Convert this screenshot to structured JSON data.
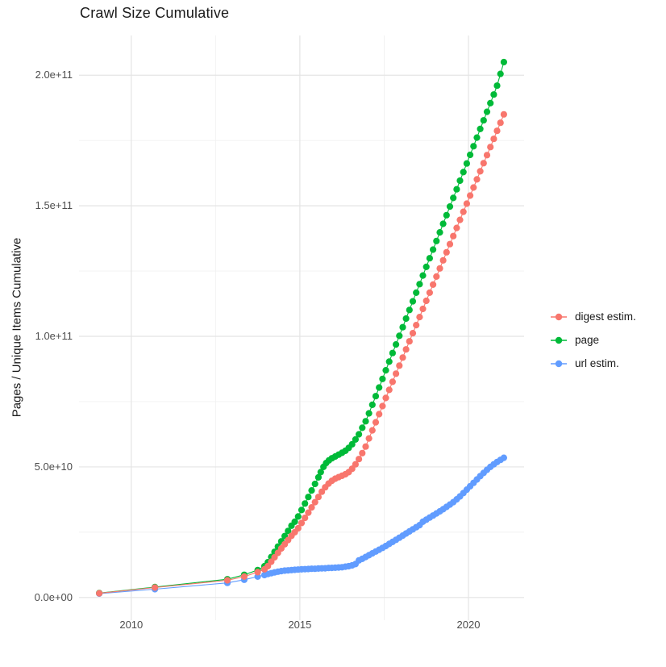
{
  "title": "Crawl Size Cumulative",
  "y_axis_title": "Pages / Unique Items Cumulative",
  "legend": {
    "items": [
      {
        "label": "digest estim.",
        "series": "digest"
      },
      {
        "label": "page",
        "series": "page"
      },
      {
        "label": "url estim.",
        "series": "url"
      }
    ]
  },
  "chart_data": {
    "type": "scatter",
    "title": "Crawl Size Cumulative",
    "xlabel": "",
    "ylabel": "Pages / Unique Items Cumulative",
    "value_unit": "1e9 (billions)",
    "xlim": [
      2008.45,
      2021.65
    ],
    "ylim": [
      -8.7,
      215.2
    ],
    "grid": true,
    "legend_position": "right",
    "x_axis": {
      "ticks": [
        {
          "value": 2010,
          "label": "2010"
        },
        {
          "value": 2015,
          "label": "2015"
        },
        {
          "value": 2020,
          "label": "2020"
        }
      ],
      "minor": [
        2012.5,
        2017.5
      ]
    },
    "y_axis": {
      "ticks": [
        {
          "value": 0,
          "label": "0.0e+00"
        },
        {
          "value": 50,
          "label": "5.0e+10"
        },
        {
          "value": 100,
          "label": "1.0e+11"
        },
        {
          "value": 150,
          "label": "1.5e+11"
        },
        {
          "value": 200,
          "label": "2.0e+11"
        }
      ],
      "minor": [
        25,
        75,
        125,
        175
      ]
    },
    "colors": {
      "digest": "#F8766D",
      "page": "#00BA38",
      "url": "#619CFF"
    },
    "grid_major_color": "#e4e4e4",
    "grid_minor_color": "#f1f1f1",
    "series": [
      {
        "name": "digest estim.",
        "id": "digest",
        "color": "#F8766D",
        "points": [
          [
            2009.05,
            1.6
          ],
          [
            2010.7,
            3.8
          ],
          [
            2012.85,
            6.6
          ],
          [
            2013.35,
            8.0
          ],
          [
            2013.75,
            9.7
          ],
          [
            2013.95,
            10.8
          ],
          [
            2014.05,
            12
          ],
          [
            2014.15,
            13.7
          ],
          [
            2014.25,
            15.4
          ],
          [
            2014.35,
            17.1
          ],
          [
            2014.45,
            18.8
          ],
          [
            2014.55,
            20.4
          ],
          [
            2014.65,
            22
          ],
          [
            2014.75,
            23.6
          ],
          [
            2014.85,
            25
          ],
          [
            2014.95,
            26.5
          ],
          [
            2015.05,
            28.5
          ],
          [
            2015.15,
            30.5
          ],
          [
            2015.25,
            32.5
          ],
          [
            2015.35,
            34.5
          ],
          [
            2015.45,
            36.5
          ],
          [
            2015.55,
            38.5
          ],
          [
            2015.65,
            40.5
          ],
          [
            2015.75,
            42.2
          ],
          [
            2015.85,
            43.6
          ],
          [
            2015.95,
            44.7
          ],
          [
            2016.05,
            45.5
          ],
          [
            2016.15,
            46.1
          ],
          [
            2016.25,
            46.6
          ],
          [
            2016.35,
            47.2
          ],
          [
            2016.45,
            48
          ],
          [
            2016.55,
            49.3
          ],
          [
            2016.65,
            51
          ],
          [
            2016.75,
            53
          ],
          [
            2016.85,
            55.3
          ],
          [
            2016.95,
            57.8
          ],
          [
            2017.05,
            60.9
          ],
          [
            2017.15,
            64
          ],
          [
            2017.25,
            67.1
          ],
          [
            2017.35,
            70.2
          ],
          [
            2017.45,
            73.3
          ],
          [
            2017.55,
            76.4
          ],
          [
            2017.65,
            79.5
          ],
          [
            2017.75,
            82.6
          ],
          [
            2017.85,
            85.7
          ],
          [
            2017.95,
            88.8
          ],
          [
            2018.05,
            91.9
          ],
          [
            2018.15,
            95
          ],
          [
            2018.25,
            98.1
          ],
          [
            2018.35,
            101.2
          ],
          [
            2018.45,
            104.3
          ],
          [
            2018.55,
            107.4
          ],
          [
            2018.65,
            110.5
          ],
          [
            2018.75,
            113.6
          ],
          [
            2018.85,
            116.7
          ],
          [
            2018.95,
            119.8
          ],
          [
            2019.05,
            122.9
          ],
          [
            2019.15,
            126
          ],
          [
            2019.25,
            129.1
          ],
          [
            2019.35,
            132.2
          ],
          [
            2019.45,
            135.3
          ],
          [
            2019.55,
            138.4
          ],
          [
            2019.65,
            141.5
          ],
          [
            2019.75,
            144.6
          ],
          [
            2019.85,
            147.7
          ],
          [
            2019.95,
            150.8
          ],
          [
            2020.05,
            153.9
          ],
          [
            2020.15,
            157
          ],
          [
            2020.25,
            160.1
          ],
          [
            2020.35,
            163.2
          ],
          [
            2020.45,
            166.3
          ],
          [
            2020.55,
            169.4
          ],
          [
            2020.65,
            172.5
          ],
          [
            2020.75,
            175.6
          ],
          [
            2020.85,
            178.7
          ],
          [
            2020.95,
            181.8
          ],
          [
            2021.05,
            185
          ]
        ]
      },
      {
        "name": "page",
        "id": "page",
        "color": "#00BA38",
        "points": [
          [
            2009.05,
            1.7
          ],
          [
            2010.7,
            4.0
          ],
          [
            2012.85,
            7.0
          ],
          [
            2013.35,
            8.7
          ],
          [
            2013.75,
            10.5
          ],
          [
            2013.95,
            12
          ],
          [
            2014.05,
            13.5
          ],
          [
            2014.15,
            15.5
          ],
          [
            2014.25,
            17.5
          ],
          [
            2014.35,
            19.5
          ],
          [
            2014.45,
            21.5
          ],
          [
            2014.55,
            23.5
          ],
          [
            2014.65,
            25.5
          ],
          [
            2014.75,
            27.5
          ],
          [
            2014.85,
            29
          ],
          [
            2014.95,
            31
          ],
          [
            2015.05,
            33.5
          ],
          [
            2015.15,
            36
          ],
          [
            2015.25,
            38.5
          ],
          [
            2015.35,
            41
          ],
          [
            2015.45,
            43.5
          ],
          [
            2015.55,
            46
          ],
          [
            2015.62,
            48
          ],
          [
            2015.7,
            50
          ],
          [
            2015.78,
            51.5
          ],
          [
            2015.86,
            52.5
          ],
          [
            2015.95,
            53.3
          ],
          [
            2016.05,
            54
          ],
          [
            2016.15,
            54.7
          ],
          [
            2016.25,
            55.4
          ],
          [
            2016.35,
            56.2
          ],
          [
            2016.45,
            57.3
          ],
          [
            2016.55,
            58.7
          ],
          [
            2016.65,
            60.5
          ],
          [
            2016.75,
            62.5
          ],
          [
            2016.85,
            65
          ],
          [
            2016.95,
            67.5
          ],
          [
            2017.05,
            70.5
          ],
          [
            2017.15,
            73.8
          ],
          [
            2017.25,
            77.1
          ],
          [
            2017.35,
            80.4
          ],
          [
            2017.45,
            83.7
          ],
          [
            2017.55,
            87
          ],
          [
            2017.65,
            90.3
          ],
          [
            2017.75,
            93.6
          ],
          [
            2017.85,
            96.9
          ],
          [
            2017.95,
            100.2
          ],
          [
            2018.05,
            103.5
          ],
          [
            2018.15,
            106.8
          ],
          [
            2018.25,
            110.1
          ],
          [
            2018.35,
            113.4
          ],
          [
            2018.45,
            116.7
          ],
          [
            2018.55,
            120
          ],
          [
            2018.65,
            123.3
          ],
          [
            2018.75,
            126.6
          ],
          [
            2018.85,
            129.9
          ],
          [
            2018.95,
            133.2
          ],
          [
            2019.05,
            136.5
          ],
          [
            2019.15,
            139.8
          ],
          [
            2019.25,
            143.1
          ],
          [
            2019.35,
            146.4
          ],
          [
            2019.45,
            149.7
          ],
          [
            2019.55,
            153
          ],
          [
            2019.65,
            156.3
          ],
          [
            2019.75,
            159.6
          ],
          [
            2019.85,
            162.9
          ],
          [
            2019.95,
            166.2
          ],
          [
            2020.05,
            169.5
          ],
          [
            2020.15,
            172.8
          ],
          [
            2020.25,
            176.1
          ],
          [
            2020.35,
            179.4
          ],
          [
            2020.45,
            182.7
          ],
          [
            2020.55,
            186
          ],
          [
            2020.65,
            189.3
          ],
          [
            2020.75,
            192.6
          ],
          [
            2020.85,
            196
          ],
          [
            2020.95,
            200.5
          ],
          [
            2021.05,
            205
          ]
        ]
      },
      {
        "name": "url estim.",
        "id": "url",
        "color": "#619CFF",
        "points": [
          [
            2009.05,
            1.5
          ],
          [
            2010.7,
            3.2
          ],
          [
            2012.85,
            5.6
          ],
          [
            2013.35,
            6.8
          ],
          [
            2013.75,
            8.0
          ],
          [
            2013.95,
            8.6
          ],
          [
            2014.05,
            9.0
          ],
          [
            2014.15,
            9.3
          ],
          [
            2014.25,
            9.6
          ],
          [
            2014.35,
            9.9
          ],
          [
            2014.45,
            10.1
          ],
          [
            2014.55,
            10.3
          ],
          [
            2014.65,
            10.4
          ],
          [
            2014.75,
            10.5
          ],
          [
            2014.85,
            10.6
          ],
          [
            2014.95,
            10.7
          ],
          [
            2015.05,
            10.8
          ],
          [
            2015.15,
            10.85
          ],
          [
            2015.25,
            10.9
          ],
          [
            2015.35,
            11
          ],
          [
            2015.45,
            11
          ],
          [
            2015.55,
            11.1
          ],
          [
            2015.65,
            11.15
          ],
          [
            2015.75,
            11.2
          ],
          [
            2015.85,
            11.3
          ],
          [
            2015.95,
            11.35
          ],
          [
            2016.05,
            11.4
          ],
          [
            2016.15,
            11.5
          ],
          [
            2016.25,
            11.6
          ],
          [
            2016.35,
            11.8
          ],
          [
            2016.45,
            12
          ],
          [
            2016.55,
            12.3
          ],
          [
            2016.65,
            12.8
          ],
          [
            2016.75,
            14.2
          ],
          [
            2016.85,
            14.8
          ],
          [
            2016.95,
            15.5
          ],
          [
            2017.05,
            16.2
          ],
          [
            2017.15,
            16.9
          ],
          [
            2017.25,
            17.6
          ],
          [
            2017.35,
            18.3
          ],
          [
            2017.45,
            19
          ],
          [
            2017.55,
            19.7
          ],
          [
            2017.65,
            20.5
          ],
          [
            2017.75,
            21.3
          ],
          [
            2017.85,
            22.1
          ],
          [
            2017.95,
            22.9
          ],
          [
            2018.05,
            23.7
          ],
          [
            2018.15,
            24.5
          ],
          [
            2018.25,
            25.3
          ],
          [
            2018.35,
            26.1
          ],
          [
            2018.45,
            26.9
          ],
          [
            2018.55,
            27.7
          ],
          [
            2018.65,
            29
          ],
          [
            2018.75,
            29.8
          ],
          [
            2018.85,
            30.6
          ],
          [
            2018.95,
            31.4
          ],
          [
            2019.05,
            32.2
          ],
          [
            2019.15,
            33
          ],
          [
            2019.25,
            33.8
          ],
          [
            2019.35,
            34.7
          ],
          [
            2019.45,
            35.6
          ],
          [
            2019.55,
            36.5
          ],
          [
            2019.65,
            37.6
          ],
          [
            2019.75,
            38.7
          ],
          [
            2019.85,
            40
          ],
          [
            2019.95,
            41.3
          ],
          [
            2020.05,
            42.6
          ],
          [
            2020.15,
            43.9
          ],
          [
            2020.25,
            45.2
          ],
          [
            2020.35,
            46.5
          ],
          [
            2020.45,
            47.7
          ],
          [
            2020.55,
            48.9
          ],
          [
            2020.65,
            50
          ],
          [
            2020.75,
            51
          ],
          [
            2020.85,
            51.9
          ],
          [
            2020.95,
            52.7
          ],
          [
            2021.05,
            53.5
          ]
        ]
      }
    ]
  }
}
